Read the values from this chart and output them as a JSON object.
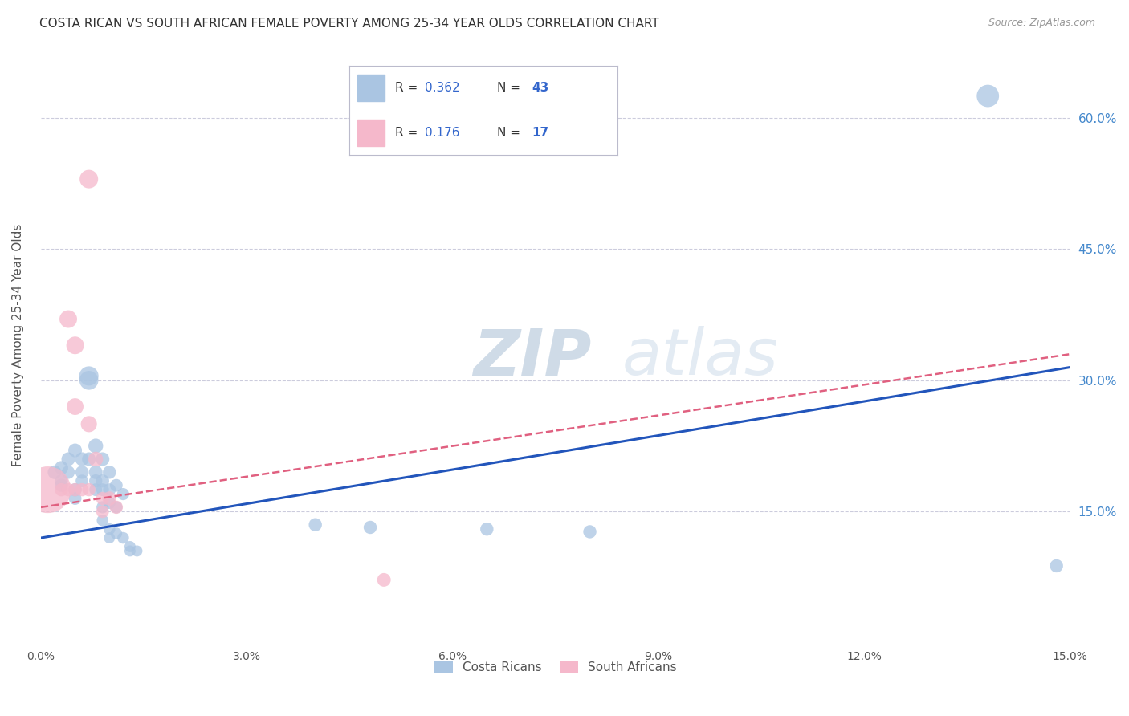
{
  "title": "COSTA RICAN VS SOUTH AFRICAN FEMALE POVERTY AMONG 25-34 YEAR OLDS CORRELATION CHART",
  "source": "Source: ZipAtlas.com",
  "ylabel": "Female Poverty Among 25-34 Year Olds",
  "xmin": 0.0,
  "xmax": 0.15,
  "ymin": 0.0,
  "ymax": 0.68,
  "yticks": [
    0.15,
    0.3,
    0.45,
    0.6
  ],
  "ytick_labels": [
    "15.0%",
    "30.0%",
    "45.0%",
    "60.0%"
  ],
  "xticks": [
    0.0,
    0.03,
    0.06,
    0.09,
    0.12,
    0.15
  ],
  "xtick_labels": [
    "0.0%",
    "3.0%",
    "6.0%",
    "9.0%",
    "12.0%",
    "15.0%"
  ],
  "cr_R": "0.362",
  "cr_N": "43",
  "sa_R": "0.176",
  "sa_N": "17",
  "cr_color": "#aac5e2",
  "sa_color": "#f5b8cb",
  "cr_line_color": "#2255bb",
  "sa_line_color": "#e06080",
  "background_color": "#ffffff",
  "grid_color": "#ccccdd",
  "watermark_zip_color": "#b0c4d8",
  "watermark_atlas_color": "#c8d8e8",
  "title_color": "#333333",
  "axis_label_color": "#555555",
  "right_tick_color": "#4488cc",
  "legend_text_color": "#333333",
  "legend_value_color": "#3366cc",
  "cr_points": [
    [
      0.002,
      0.195
    ],
    [
      0.003,
      0.2
    ],
    [
      0.003,
      0.185
    ],
    [
      0.003,
      0.18
    ],
    [
      0.004,
      0.21
    ],
    [
      0.004,
      0.195
    ],
    [
      0.005,
      0.22
    ],
    [
      0.005,
      0.175
    ],
    [
      0.005,
      0.165
    ],
    [
      0.006,
      0.21
    ],
    [
      0.006,
      0.195
    ],
    [
      0.006,
      0.185
    ],
    [
      0.007,
      0.305
    ],
    [
      0.007,
      0.3
    ],
    [
      0.007,
      0.21
    ],
    [
      0.008,
      0.225
    ],
    [
      0.008,
      0.195
    ],
    [
      0.008,
      0.185
    ],
    [
      0.008,
      0.175
    ],
    [
      0.009,
      0.21
    ],
    [
      0.009,
      0.185
    ],
    [
      0.009,
      0.175
    ],
    [
      0.009,
      0.155
    ],
    [
      0.009,
      0.14
    ],
    [
      0.01,
      0.195
    ],
    [
      0.01,
      0.175
    ],
    [
      0.01,
      0.16
    ],
    [
      0.01,
      0.13
    ],
    [
      0.01,
      0.12
    ],
    [
      0.011,
      0.18
    ],
    [
      0.011,
      0.155
    ],
    [
      0.011,
      0.125
    ],
    [
      0.012,
      0.17
    ],
    [
      0.012,
      0.12
    ],
    [
      0.013,
      0.11
    ],
    [
      0.013,
      0.105
    ],
    [
      0.014,
      0.105
    ],
    [
      0.04,
      0.135
    ],
    [
      0.048,
      0.132
    ],
    [
      0.065,
      0.13
    ],
    [
      0.08,
      0.127
    ],
    [
      0.148,
      0.088
    ],
    [
      0.138,
      0.625
    ]
  ],
  "sa_points": [
    [
      0.001,
      0.175
    ],
    [
      0.003,
      0.175
    ],
    [
      0.004,
      0.175
    ],
    [
      0.005,
      0.175
    ],
    [
      0.006,
      0.175
    ],
    [
      0.007,
      0.175
    ],
    [
      0.004,
      0.37
    ],
    [
      0.005,
      0.34
    ],
    [
      0.005,
      0.27
    ],
    [
      0.007,
      0.25
    ],
    [
      0.008,
      0.21
    ],
    [
      0.009,
      0.165
    ],
    [
      0.009,
      0.15
    ],
    [
      0.01,
      0.165
    ],
    [
      0.011,
      0.155
    ],
    [
      0.05,
      0.072
    ],
    [
      0.007,
      0.53
    ]
  ],
  "cr_line_x": [
    0.0,
    0.15
  ],
  "cr_line_y": [
    0.12,
    0.315
  ],
  "sa_line_x": [
    0.0,
    0.15
  ],
  "sa_line_y": [
    0.155,
    0.33
  ],
  "cr_sizes": [
    30,
    30,
    28,
    28,
    30,
    28,
    30,
    28,
    26,
    30,
    28,
    26,
    60,
    58,
    30,
    35,
    30,
    28,
    26,
    30,
    28,
    26,
    24,
    22,
    28,
    26,
    24,
    22,
    20,
    26,
    24,
    22,
    24,
    22,
    20,
    20,
    20,
    28,
    28,
    28,
    28,
    28,
    80
  ],
  "sa_sizes": [
    350,
    28,
    28,
    28,
    28,
    28,
    50,
    50,
    45,
    42,
    35,
    28,
    26,
    32,
    28,
    30,
    55
  ]
}
